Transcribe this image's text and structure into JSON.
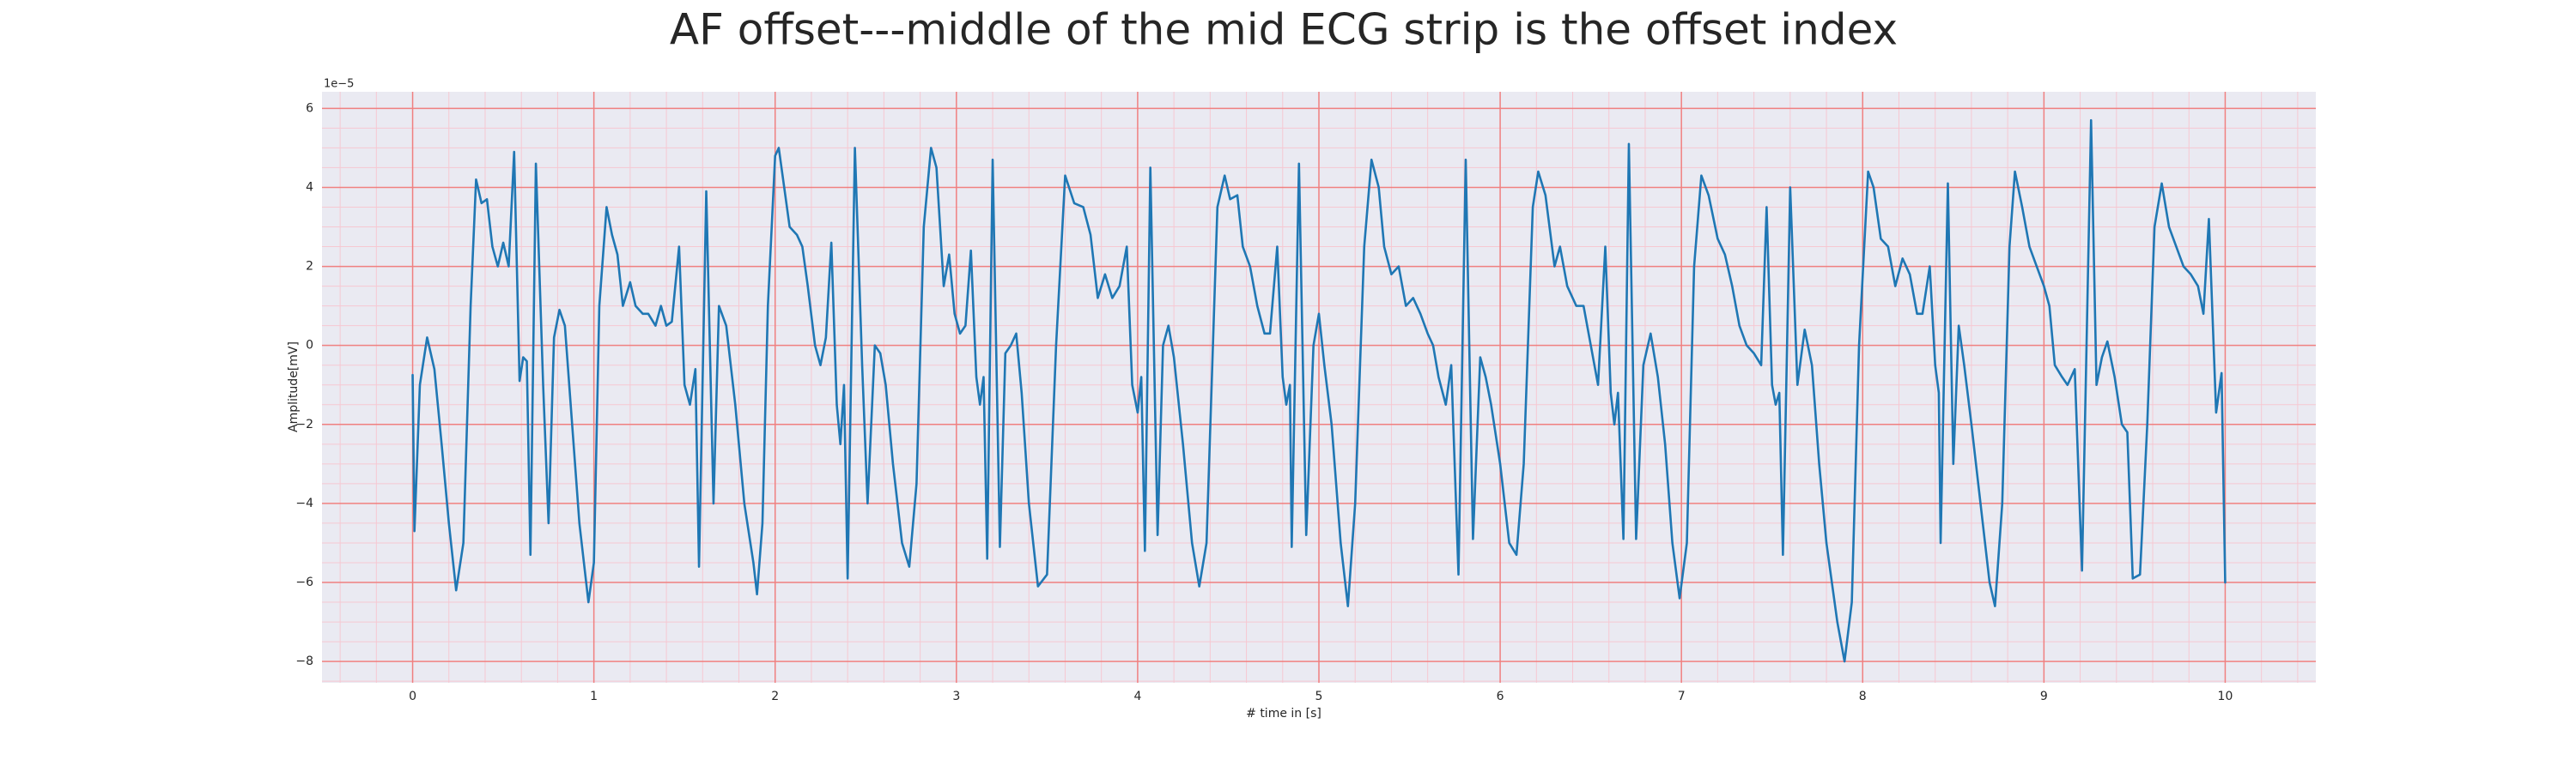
{
  "chart_data": {
    "type": "line",
    "title": "AF offset---middle of the mid ECG strip is the offset index",
    "xlabel": "# time in [s]",
    "ylabel": "Amplitude[mV]",
    "y_offset_label": "1e−5",
    "xlim": [
      -0.5,
      10.5
    ],
    "ylim": [
      -8.54,
      6.42
    ],
    "xticks": [
      0,
      1,
      2,
      3,
      4,
      5,
      6,
      7,
      8,
      9,
      10
    ],
    "yticks": [
      {
        "value": -8,
        "label": "−8"
      },
      {
        "value": -6,
        "label": "−6"
      },
      {
        "value": -4,
        "label": "−4"
      },
      {
        "value": -2,
        "label": "−2"
      },
      0,
      2,
      4,
      6
    ],
    "xminorticks": [
      -0.4,
      -0.2,
      0.2,
      0.4,
      0.6,
      0.8,
      1.2,
      1.4,
      1.6,
      1.8,
      2.2,
      2.4,
      2.6,
      2.8,
      3.2,
      3.4,
      3.6,
      3.8,
      4.2,
      4.4,
      4.6,
      4.8,
      5.2,
      5.4,
      5.6,
      5.8,
      6.2,
      6.4,
      6.6,
      6.8,
      7.2,
      7.4,
      7.6,
      7.8,
      8.2,
      8.4,
      8.6,
      8.8,
      9.2,
      9.4,
      9.6,
      9.8,
      10.2,
      10.4
    ],
    "yminorticks": [
      -8.5,
      -7.5,
      -7,
      -6.5,
      -5.5,
      -5,
      -4.5,
      -3.5,
      -3,
      -2.5,
      -1.5,
      -1,
      -0.5,
      0.5,
      1,
      1.5,
      2.5,
      3,
      3.5,
      4.5,
      5,
      5.5
    ],
    "grid": true,
    "grid_color": "#f08080",
    "minor_grid_color": "#f6c8d2",
    "background": "#eaeaf2",
    "x": [
      0,
      0.01,
      0.04,
      0.08,
      0.12,
      0.16,
      0.2,
      0.24,
      0.28,
      0.32,
      0.35,
      0.38,
      0.41,
      0.44,
      0.47,
      0.5,
      0.53,
      0.56,
      0.59,
      0.61,
      0.63,
      0.65,
      0.68,
      0.72,
      0.75,
      0.78,
      0.81,
      0.84,
      0.88,
      0.92,
      0.97,
      1.0,
      1.03,
      1.07,
      1.1,
      1.13,
      1.16,
      1.2,
      1.23,
      1.27,
      1.3,
      1.34,
      1.37,
      1.4,
      1.43,
      1.47,
      1.5,
      1.53,
      1.56,
      1.58,
      1.62,
      1.66,
      1.69,
      1.73,
      1.78,
      1.83,
      1.88,
      1.9,
      1.93,
      1.96,
      2.0,
      2.02,
      2.05,
      2.08,
      2.12,
      2.15,
      2.18,
      2.22,
      2.25,
      2.28,
      2.31,
      2.34,
      2.36,
      2.38,
      2.4,
      2.44,
      2.48,
      2.51,
      2.55,
      2.58,
      2.61,
      2.65,
      2.7,
      2.74,
      2.78,
      2.82,
      2.86,
      2.89,
      2.93,
      2.96,
      2.99,
      3.02,
      3.05,
      3.08,
      3.11,
      3.13,
      3.15,
      3.17,
      3.2,
      3.24,
      3.27,
      3.3,
      3.33,
      3.36,
      3.4,
      3.45,
      3.5,
      3.55,
      3.6,
      3.65,
      3.7,
      3.74,
      3.78,
      3.82,
      3.86,
      3.9,
      3.94,
      3.97,
      4.0,
      4.02,
      4.04,
      4.07,
      4.11,
      4.14,
      4.17,
      4.2,
      4.25,
      4.3,
      4.34,
      4.38,
      4.44,
      4.48,
      4.51,
      4.55,
      4.58,
      4.62,
      4.66,
      4.7,
      4.73,
      4.77,
      4.8,
      4.82,
      4.84,
      4.85,
      4.89,
      4.93,
      4.97,
      5.0,
      5.03,
      5.07,
      5.12,
      5.16,
      5.2,
      5.25,
      5.29,
      5.33,
      5.36,
      5.4,
      5.44,
      5.48,
      5.52,
      5.56,
      5.6,
      5.63,
      5.66,
      5.7,
      5.73,
      5.77,
      5.81,
      5.85,
      5.89,
      5.92,
      5.95,
      6.0,
      6.05,
      6.09,
      6.13,
      6.18,
      6.21,
      6.25,
      6.3,
      6.33,
      6.37,
      6.42,
      6.46,
      6.5,
      6.54,
      6.58,
      6.61,
      6.63,
      6.65,
      6.68,
      6.71,
      6.75,
      6.79,
      6.83,
      6.87,
      6.91,
      6.95,
      6.99,
      7.03,
      7.07,
      7.11,
      7.15,
      7.2,
      7.24,
      7.28,
      7.32,
      7.36,
      7.4,
      7.44,
      7.47,
      7.5,
      7.52,
      7.54,
      7.56,
      7.6,
      7.64,
      7.68,
      7.72,
      7.76,
      7.8,
      7.86,
      7.9,
      7.94,
      7.98,
      8.03,
      8.06,
      8.1,
      8.14,
      8.18,
      8.22,
      8.26,
      8.3,
      8.33,
      8.37,
      8.4,
      8.42,
      8.43,
      8.47,
      8.5,
      8.53,
      8.56,
      8.6,
      8.65,
      8.7,
      8.73,
      8.77,
      8.81,
      8.84,
      8.88,
      8.92,
      8.96,
      9.0,
      9.03,
      9.06,
      9.1,
      9.13,
      9.17,
      9.21,
      9.26,
      9.29,
      9.32,
      9.35,
      9.39,
      9.43,
      9.46,
      9.49,
      9.53,
      9.57,
      9.61,
      9.65,
      9.69,
      9.73,
      9.77,
      9.81,
      9.85,
      9.88,
      9.91,
      9.95,
      9.98,
      10.0
    ],
    "series": [
      {
        "color": "#1f77b4",
        "values": [
          -0.75,
          -4.7,
          -1.0,
          0.2,
          -0.6,
          -2.5,
          -4.5,
          -6.2,
          -5.0,
          1.0,
          4.2,
          3.6,
          3.7,
          2.5,
          2.0,
          2.6,
          2.0,
          4.9,
          -0.9,
          -0.3,
          -0.4,
          -5.3,
          4.6,
          -1.0,
          -4.5,
          0.2,
          0.9,
          0.5,
          -2.0,
          -4.5,
          -6.5,
          -5.5,
          1.0,
          3.5,
          2.8,
          2.3,
          1.0,
          1.6,
          1.0,
          0.8,
          0.8,
          0.5,
          1.0,
          0.5,
          0.6,
          2.5,
          -1.0,
          -1.5,
          -0.6,
          -5.6,
          3.9,
          -4.0,
          1.0,
          0.5,
          -1.5,
          -4.0,
          -5.5,
          -6.3,
          -4.5,
          1.0,
          4.8,
          5.0,
          4.0,
          3.0,
          2.8,
          2.5,
          1.5,
          0.0,
          -0.5,
          0.2,
          2.6,
          -1.5,
          -2.5,
          -1.0,
          -5.9,
          5.0,
          -0.5,
          -4.0,
          0.0,
          -0.2,
          -1.0,
          -3.0,
          -5.0,
          -5.6,
          -3.5,
          3.0,
          5.0,
          4.5,
          1.5,
          2.3,
          0.8,
          0.3,
          0.5,
          2.4,
          -0.8,
          -1.5,
          -0.8,
          -5.4,
          4.7,
          -5.1,
          -0.2,
          0.0,
          0.3,
          -1.2,
          -4.0,
          -6.1,
          -5.8,
          0.0,
          4.3,
          3.6,
          3.5,
          2.8,
          1.2,
          1.8,
          1.2,
          1.5,
          2.5,
          -1.0,
          -1.7,
          -0.8,
          -5.2,
          4.5,
          -4.8,
          0.0,
          0.5,
          -0.3,
          -2.5,
          -5.0,
          -6.1,
          -5.0,
          3.5,
          4.3,
          3.7,
          3.8,
          2.5,
          2.0,
          1.0,
          0.3,
          0.3,
          2.5,
          -0.8,
          -1.5,
          -1.0,
          -5.1,
          4.6,
          -4.8,
          0.0,
          0.8,
          -0.5,
          -2.0,
          -5.0,
          -6.6,
          -4.0,
          2.5,
          4.7,
          4.0,
          2.5,
          1.8,
          2.0,
          1.0,
          1.2,
          0.8,
          0.3,
          0.0,
          -0.8,
          -1.5,
          -0.5,
          -5.8,
          4.7,
          -4.9,
          -0.3,
          -0.8,
          -1.5,
          -3.0,
          -5.0,
          -5.3,
          -3.0,
          3.5,
          4.4,
          3.8,
          2.0,
          2.5,
          1.5,
          1.0,
          1.0,
          0.0,
          -1.0,
          2.5,
          -1.2,
          -2.0,
          -1.2,
          -4.9,
          5.1,
          -4.9,
          -0.5,
          0.3,
          -0.8,
          -2.5,
          -5.0,
          -6.4,
          -5.0,
          2.0,
          4.3,
          3.8,
          2.7,
          2.3,
          1.5,
          0.5,
          0.0,
          -0.2,
          -0.5,
          3.5,
          -1.0,
          -1.5,
          -1.2,
          -5.3,
          4.0,
          -1.0,
          0.4,
          -0.5,
          -3.0,
          -5.0,
          -7.0,
          -8.0,
          -6.5,
          0.0,
          4.4,
          4.0,
          2.7,
          2.5,
          1.5,
          2.2,
          1.8,
          0.8,
          0.8,
          2.0,
          -0.5,
          -1.2,
          -5.0,
          4.1,
          -3.0,
          0.5,
          -0.5,
          -2.0,
          -4.0,
          -6.0,
          -6.6,
          -4.0,
          2.5,
          4.4,
          3.5,
          2.5,
          2.0,
          1.5,
          1.0,
          -0.5,
          -0.8,
          -1.0,
          -0.6,
          -5.7,
          5.7,
          -1.0,
          -0.3,
          0.1,
          -0.8,
          -2.0,
          -2.2,
          -5.9,
          -5.8,
          -2.0,
          3.0,
          4.1,
          3.0,
          2.5,
          2.0,
          1.8,
          1.5,
          0.8,
          3.2,
          -1.7,
          -0.7,
          -6.0
        ]
      }
    ]
  }
}
